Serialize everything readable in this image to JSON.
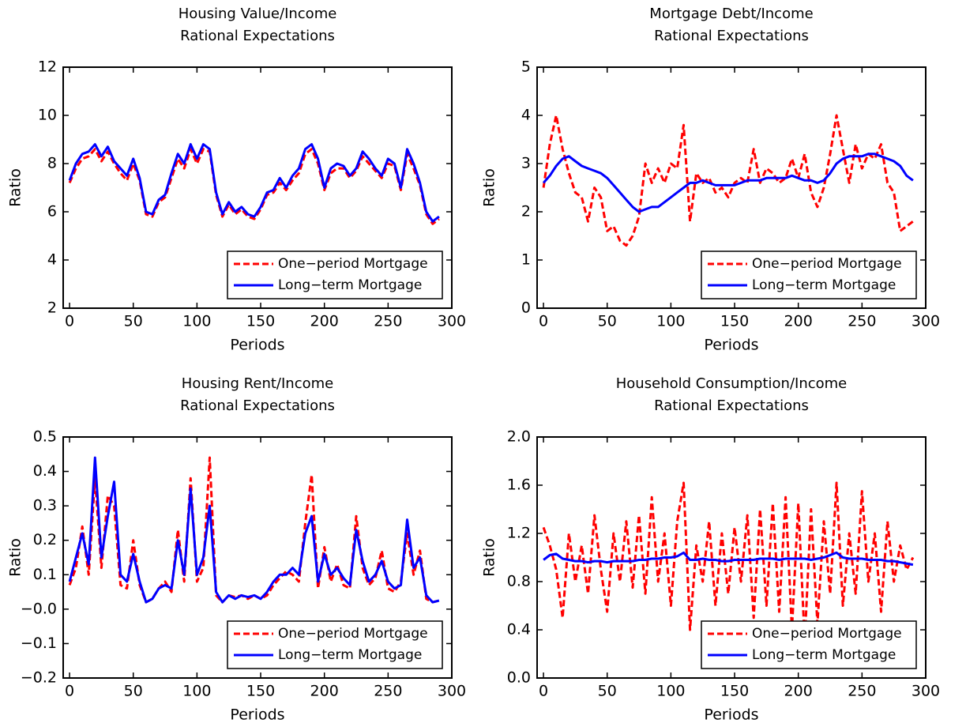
{
  "chart_data": [
    {
      "type": "line",
      "title": "Housing Value/Income",
      "subtitle": "Rational Expectations",
      "xlabel": "Periods",
      "ylabel": "Ratio",
      "legend": "lower right",
      "x": [
        0,
        5,
        10,
        15,
        20,
        25,
        30,
        35,
        40,
        45,
        50,
        55,
        60,
        65,
        70,
        75,
        80,
        85,
        90,
        95,
        100,
        105,
        110,
        115,
        120,
        125,
        130,
        135,
        140,
        145,
        150,
        155,
        160,
        165,
        170,
        175,
        180,
        185,
        190,
        195,
        200,
        205,
        210,
        215,
        220,
        225,
        230,
        235,
        240,
        245,
        250,
        255,
        260,
        265,
        270,
        275,
        280,
        285,
        290
      ],
      "xlim": [
        -5,
        300
      ],
      "xticks": [
        0,
        50,
        100,
        150,
        200,
        250,
        300
      ],
      "ylim": [
        2,
        12
      ],
      "yticks": [
        2,
        4,
        6,
        8,
        10,
        12
      ],
      "series": [
        {
          "name": "One−period Mortgage",
          "color": "#ff0000",
          "dashed": true,
          "values": [
            7.2,
            7.8,
            8.2,
            8.3,
            8.6,
            8.1,
            8.5,
            8.0,
            7.6,
            7.3,
            8.0,
            7.3,
            5.9,
            5.8,
            6.4,
            6.6,
            7.4,
            8.2,
            7.8,
            8.6,
            8.0,
            8.6,
            8.5,
            6.7,
            5.8,
            6.3,
            5.9,
            6.1,
            5.8,
            5.7,
            6.1,
            6.7,
            6.8,
            7.2,
            6.9,
            7.3,
            7.6,
            8.4,
            8.6,
            8.0,
            6.9,
            7.6,
            7.8,
            7.8,
            7.4,
            7.7,
            8.3,
            8.0,
            7.7,
            7.4,
            8.0,
            7.9,
            6.9,
            8.4,
            7.8,
            7.1,
            5.9,
            5.5,
            5.7
          ]
        },
        {
          "name": "Long−term Mortgage",
          "color": "#0000ff",
          "dashed": false,
          "values": [
            7.3,
            8.0,
            8.4,
            8.5,
            8.8,
            8.3,
            8.7,
            8.1,
            7.8,
            7.5,
            8.2,
            7.4,
            6.0,
            5.9,
            6.5,
            6.7,
            7.6,
            8.4,
            8.0,
            8.8,
            8.2,
            8.8,
            8.6,
            6.8,
            5.9,
            6.4,
            6.0,
            6.2,
            5.9,
            5.8,
            6.2,
            6.8,
            6.9,
            7.4,
            7.0,
            7.5,
            7.8,
            8.6,
            8.8,
            8.2,
            7.0,
            7.8,
            8.0,
            7.9,
            7.5,
            7.8,
            8.5,
            8.2,
            7.8,
            7.5,
            8.2,
            8.0,
            7.0,
            8.6,
            8.0,
            7.2,
            6.0,
            5.6,
            5.8
          ]
        }
      ]
    },
    {
      "type": "line",
      "title": "Mortgage Debt/Income",
      "subtitle": "Rational Expectations",
      "xlabel": "Periods",
      "ylabel": "Ratio",
      "legend": "lower right",
      "x": [
        0,
        5,
        10,
        15,
        20,
        25,
        30,
        35,
        40,
        45,
        50,
        55,
        60,
        65,
        70,
        75,
        80,
        85,
        90,
        95,
        100,
        105,
        110,
        115,
        120,
        125,
        130,
        135,
        140,
        145,
        150,
        155,
        160,
        165,
        170,
        175,
        180,
        185,
        190,
        195,
        200,
        205,
        210,
        215,
        220,
        225,
        230,
        235,
        240,
        245,
        250,
        255,
        260,
        265,
        270,
        275,
        280,
        285,
        290
      ],
      "xlim": [
        -5,
        300
      ],
      "xticks": [
        0,
        50,
        100,
        150,
        200,
        250,
        300
      ],
      "ylim": [
        0,
        5
      ],
      "yticks": [
        0,
        1,
        2,
        3,
        4,
        5
      ],
      "series": [
        {
          "name": "One−period Mortgage",
          "color": "#ff0000",
          "dashed": true,
          "values": [
            2.5,
            3.4,
            4.0,
            3.3,
            2.8,
            2.4,
            2.3,
            1.8,
            2.5,
            2.3,
            1.6,
            1.7,
            1.4,
            1.3,
            1.5,
            1.9,
            3.0,
            2.6,
            2.9,
            2.6,
            3.0,
            2.9,
            3.8,
            1.8,
            2.8,
            2.6,
            2.7,
            2.4,
            2.5,
            2.3,
            2.6,
            2.7,
            2.6,
            3.3,
            2.6,
            2.9,
            2.8,
            2.6,
            2.7,
            3.1,
            2.7,
            3.2,
            2.4,
            2.1,
            2.5,
            3.2,
            4.0,
            3.3,
            2.6,
            3.4,
            2.9,
            3.2,
            3.1,
            3.4,
            2.6,
            2.4,
            1.6,
            1.7,
            1.8
          ]
        },
        {
          "name": "Long−term Mortgage",
          "color": "#0000ff",
          "dashed": false,
          "values": [
            2.6,
            2.75,
            2.95,
            3.1,
            3.15,
            3.05,
            2.95,
            2.9,
            2.85,
            2.8,
            2.7,
            2.55,
            2.4,
            2.25,
            2.1,
            2.0,
            2.05,
            2.1,
            2.1,
            2.2,
            2.3,
            2.4,
            2.5,
            2.6,
            2.6,
            2.65,
            2.6,
            2.55,
            2.55,
            2.55,
            2.55,
            2.6,
            2.65,
            2.65,
            2.65,
            2.7,
            2.7,
            2.7,
            2.7,
            2.75,
            2.7,
            2.65,
            2.65,
            2.6,
            2.65,
            2.8,
            3.0,
            3.1,
            3.15,
            3.15,
            3.15,
            3.2,
            3.2,
            3.15,
            3.1,
            3.05,
            2.95,
            2.75,
            2.65
          ]
        }
      ]
    },
    {
      "type": "line",
      "title": "Housing Rent/Income",
      "subtitle": "Rational Expectations",
      "xlabel": "Periods",
      "ylabel": "Ratio",
      "legend": "lower right",
      "x": [
        0,
        5,
        10,
        15,
        20,
        25,
        30,
        35,
        40,
        45,
        50,
        55,
        60,
        65,
        70,
        75,
        80,
        85,
        90,
        95,
        100,
        105,
        110,
        115,
        120,
        125,
        130,
        135,
        140,
        145,
        150,
        155,
        160,
        165,
        170,
        175,
        180,
        185,
        190,
        195,
        200,
        205,
        210,
        215,
        220,
        225,
        230,
        235,
        240,
        245,
        250,
        255,
        260,
        265,
        270,
        275,
        280,
        285,
        290
      ],
      "xlim": [
        -5,
        300
      ],
      "xticks": [
        0,
        50,
        100,
        150,
        200,
        250,
        300
      ],
      "ylim": [
        -0.2,
        0.5
      ],
      "yticks": [
        {
          "value": -0.2,
          "label": "−0.2"
        },
        {
          "value": -0.1,
          "label": "−0.1"
        },
        {
          "value": 0,
          "label": "−0.0"
        },
        0.1,
        0.2,
        0.3,
        0.4,
        0.5
      ],
      "series": [
        {
          "name": "One−period Mortgage",
          "color": "#ff0000",
          "dashed": true,
          "values": [
            0.07,
            0.12,
            0.24,
            0.1,
            0.38,
            0.12,
            0.33,
            0.3,
            0.07,
            0.06,
            0.2,
            0.07,
            0.02,
            0.03,
            0.06,
            0.08,
            0.05,
            0.23,
            0.08,
            0.38,
            0.08,
            0.12,
            0.44,
            0.04,
            0.02,
            0.04,
            0.035,
            0.04,
            0.03,
            0.04,
            0.03,
            0.04,
            0.07,
            0.09,
            0.11,
            0.1,
            0.08,
            0.25,
            0.39,
            0.06,
            0.18,
            0.08,
            0.13,
            0.07,
            0.06,
            0.27,
            0.12,
            0.07,
            0.09,
            0.17,
            0.06,
            0.05,
            0.08,
            0.22,
            0.1,
            0.17,
            0.03,
            0.02,
            0.025
          ]
        },
        {
          "name": "Long−term Mortgage",
          "color": "#0000ff",
          "dashed": false,
          "values": [
            0.08,
            0.15,
            0.22,
            0.13,
            0.44,
            0.15,
            0.27,
            0.37,
            0.1,
            0.08,
            0.16,
            0.08,
            0.02,
            0.03,
            0.06,
            0.07,
            0.06,
            0.2,
            0.1,
            0.35,
            0.1,
            0.15,
            0.3,
            0.05,
            0.02,
            0.04,
            0.03,
            0.04,
            0.035,
            0.04,
            0.03,
            0.05,
            0.08,
            0.1,
            0.1,
            0.12,
            0.1,
            0.22,
            0.27,
            0.08,
            0.16,
            0.1,
            0.12,
            0.09,
            0.07,
            0.23,
            0.14,
            0.08,
            0.1,
            0.14,
            0.08,
            0.06,
            0.07,
            0.26,
            0.12,
            0.15,
            0.04,
            0.02,
            0.025
          ]
        }
      ]
    },
    {
      "type": "line",
      "title": "Household Consumption/Income",
      "subtitle": "Rational Expectations",
      "xlabel": "Periods",
      "ylabel": "Ratio",
      "legend": "lower right",
      "x": [
        0,
        5,
        10,
        15,
        20,
        25,
        30,
        35,
        40,
        45,
        50,
        55,
        60,
        65,
        70,
        75,
        80,
        85,
        90,
        95,
        100,
        105,
        110,
        115,
        120,
        125,
        130,
        135,
        140,
        145,
        150,
        155,
        160,
        165,
        170,
        175,
        180,
        185,
        190,
        195,
        200,
        205,
        210,
        215,
        220,
        225,
        230,
        235,
        240,
        245,
        250,
        255,
        260,
        265,
        270,
        275,
        280,
        285,
        290
      ],
      "xlim": [
        -5,
        300
      ],
      "xticks": [
        0,
        50,
        100,
        150,
        200,
        250,
        300
      ],
      "ylim": [
        0,
        2
      ],
      "yticks": [
        {
          "value": 0,
          "label": "0.0"
        },
        0.4,
        0.8,
        1.2,
        1.6,
        {
          "value": 2,
          "label": "2.0"
        }
      ],
      "series": [
        {
          "name": "One−period Mortgage",
          "color": "#ff0000",
          "dashed": true,
          "values": [
            1.25,
            1.1,
            0.9,
            0.5,
            1.2,
            0.8,
            1.1,
            0.7,
            1.35,
            0.9,
            0.55,
            1.2,
            0.8,
            1.3,
            0.75,
            1.35,
            0.7,
            1.5,
            0.8,
            1.2,
            0.6,
            1.3,
            1.62,
            0.4,
            1.1,
            0.8,
            1.3,
            0.6,
            1.2,
            0.7,
            1.25,
            0.8,
            1.35,
            0.5,
            1.4,
            0.6,
            1.45,
            0.55,
            1.5,
            0.4,
            1.45,
            0.3,
            1.4,
            0.45,
            1.3,
            0.7,
            1.62,
            0.6,
            1.2,
            0.7,
            1.55,
            0.8,
            1.2,
            0.55,
            1.3,
            0.8,
            1.1,
            0.9,
            1.0
          ]
        },
        {
          "name": "Long−term Mortgage",
          "color": "#0000ff",
          "dashed": false,
          "values": [
            0.98,
            1.02,
            1.03,
            0.99,
            0.98,
            0.97,
            0.97,
            0.96,
            0.97,
            0.97,
            0.96,
            0.97,
            0.97,
            0.97,
            0.97,
            0.98,
            0.98,
            0.99,
            0.99,
            1.0,
            1.0,
            1.01,
            1.04,
            0.98,
            0.98,
            0.99,
            0.98,
            0.98,
            0.97,
            0.97,
            0.98,
            0.98,
            0.98,
            0.98,
            0.99,
            0.99,
            0.99,
            0.98,
            0.99,
            0.99,
            0.99,
            0.99,
            0.98,
            0.99,
            1.0,
            1.02,
            1.04,
            1.0,
            0.99,
            0.99,
            0.99,
            0.98,
            0.98,
            0.98,
            0.97,
            0.97,
            0.96,
            0.95,
            0.94
          ]
        }
      ]
    }
  ]
}
